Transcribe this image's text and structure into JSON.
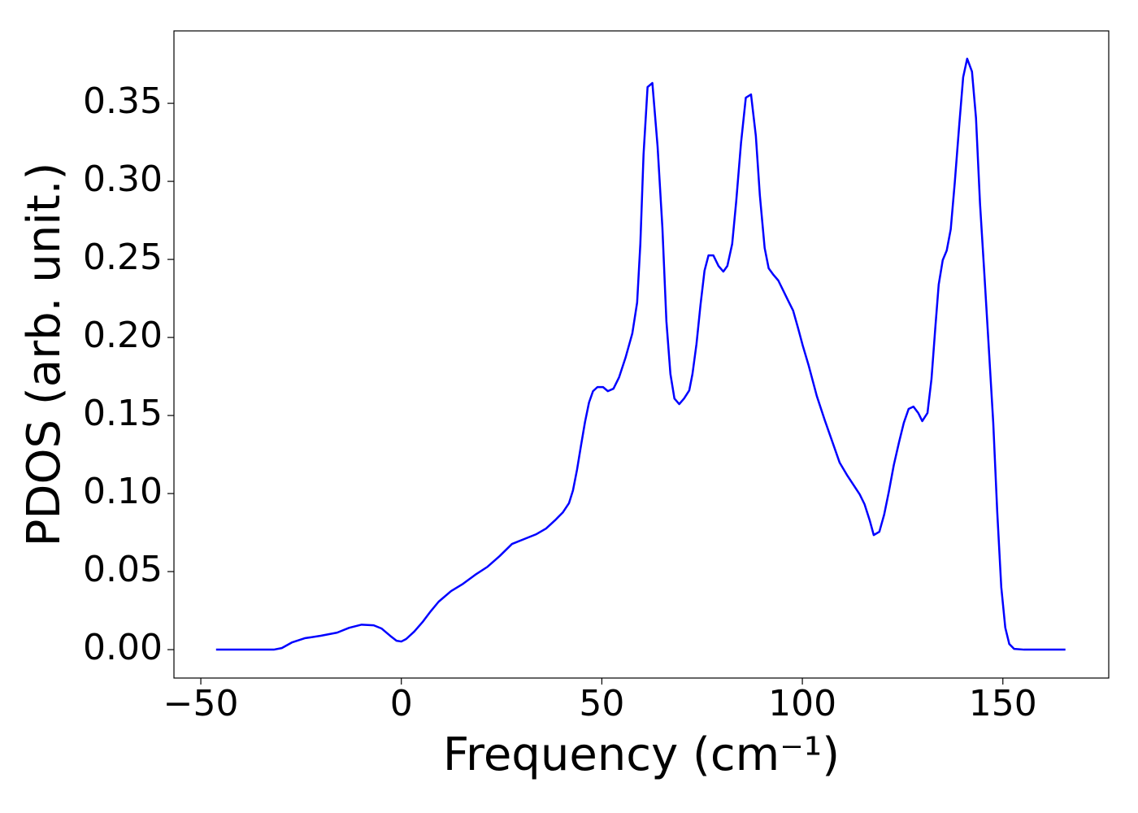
{
  "chart_data": {
    "type": "line",
    "xlabel": "Frequency (cm⁻¹)",
    "ylabel": "PDOS (arb. unit.)",
    "xlim": [
      -56.7,
      176.4
    ],
    "ylim": [
      -0.0182,
      0.3964
    ],
    "xticks": [
      {
        "value": -50,
        "label": "−50"
      },
      0,
      50,
      100,
      150
    ],
    "yticks": [
      {
        "value": 0,
        "label": "0.00"
      },
      {
        "value": 0.05,
        "label": "0.05"
      },
      {
        "value": 0.1,
        "label": "0.10"
      },
      {
        "value": 0.15,
        "label": "0.15"
      },
      {
        "value": 0.2,
        "label": "0.20"
      },
      {
        "value": 0.25,
        "label": "0.25"
      },
      {
        "value": 0.3,
        "label": "0.30"
      },
      {
        "value": 0.35,
        "label": "0.35"
      }
    ],
    "grid": false,
    "series": [
      {
        "color": "#0000ff",
        "x": [
          -46.2,
          -39.3,
          -31.8,
          -29.8,
          -27.2,
          -24.1,
          -20.1,
          -16.0,
          -13.0,
          -9.9,
          -6.9,
          -4.9,
          -2.8,
          -1.2,
          0,
          1.2,
          3.2,
          5.3,
          7.3,
          9.3,
          12.4,
          15.4,
          18.4,
          21.5,
          24.5,
          27.6,
          30.6,
          33.7,
          36.1,
          38.3,
          40.3,
          41.8,
          42.8,
          43.8,
          44.8,
          45.8,
          46.8,
          47.8,
          48.9,
          50.3,
          51.5,
          52.9,
          54.3,
          55.9,
          57.6,
          58.8,
          59.6,
          60.4,
          61.4,
          62.6,
          63.9,
          65.1,
          66.1,
          67.1,
          68.1,
          69.3,
          70.5,
          71.8,
          72.6,
          73.6,
          74.6,
          75.6,
          76.6,
          77.8,
          79.1,
          80.3,
          81.3,
          82.5,
          83.5,
          84.7,
          85.9,
          87.2,
          88.4,
          89.4,
          90.6,
          91.6,
          92.8,
          94.0,
          95.3,
          96.5,
          97.7,
          98.9,
          100.1,
          101.6,
          103.6,
          105.6,
          107.6,
          109.3,
          111.1,
          112.7,
          114.3,
          115.5,
          116.8,
          117.8,
          119.2,
          120.4,
          121.6,
          122.8,
          124.1,
          125.3,
          126.5,
          127.7,
          128.9,
          129.9,
          131.2,
          132.2,
          133.2,
          134.0,
          135.0,
          136.0,
          137.0,
          138.0,
          139.1,
          140.1,
          141.1,
          142.3,
          143.3,
          144.3,
          145.3,
          146.4,
          147.6,
          148.6,
          149.6,
          150.6,
          151.6,
          152.8,
          155.3,
          161.4,
          165.6
        ],
        "values": [
          0,
          0,
          0,
          0.001,
          0.0047,
          0.0073,
          0.0089,
          0.0109,
          0.014,
          0.016,
          0.0156,
          0.0135,
          0.0089,
          0.0057,
          0.0052,
          0.0068,
          0.0115,
          0.0177,
          0.0245,
          0.0307,
          0.0375,
          0.0422,
          0.0479,
          0.0531,
          0.0599,
          0.0677,
          0.0708,
          0.074,
          0.0776,
          0.0828,
          0.088,
          0.0938,
          0.102,
          0.1151,
          0.1307,
          0.1458,
          0.1583,
          0.1656,
          0.1682,
          0.1682,
          0.1656,
          0.1672,
          0.1745,
          0.187,
          0.2026,
          0.2224,
          0.2599,
          0.3172,
          0.3604,
          0.363,
          0.3224,
          0.2703,
          0.2104,
          0.1766,
          0.1609,
          0.1573,
          0.1609,
          0.1661,
          0.1766,
          0.1958,
          0.2208,
          0.2427,
          0.2526,
          0.2526,
          0.2458,
          0.2422,
          0.2458,
          0.2599,
          0.287,
          0.3245,
          0.3536,
          0.3557,
          0.3292,
          0.2911,
          0.2573,
          0.2443,
          0.2401,
          0.2365,
          0.2297,
          0.2234,
          0.2172,
          0.2063,
          0.1948,
          0.1818,
          0.1625,
          0.1469,
          0.1323,
          0.1198,
          0.112,
          0.1057,
          0.0995,
          0.0932,
          0.0828,
          0.0734,
          0.0755,
          0.0865,
          0.1016,
          0.1182,
          0.1328,
          0.1453,
          0.1542,
          0.1557,
          0.1516,
          0.1464,
          0.1516,
          0.1734,
          0.2078,
          0.2339,
          0.2495,
          0.2557,
          0.2693,
          0.299,
          0.3354,
          0.3667,
          0.3786,
          0.3703,
          0.3406,
          0.2859,
          0.2443,
          0.1974,
          0.1453,
          0.088,
          0.0401,
          0.0141,
          0.0036,
          0.0005,
          0,
          0,
          0
        ]
      }
    ]
  }
}
